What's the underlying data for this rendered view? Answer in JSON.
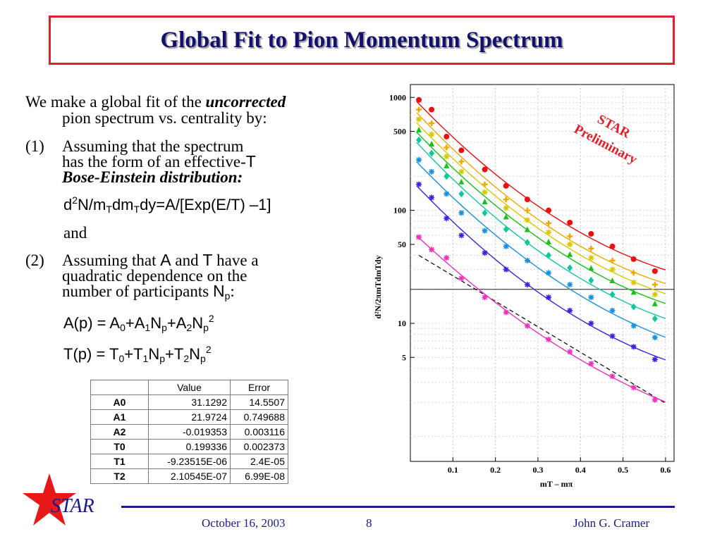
{
  "title": "Global Fit to Pion Momentum Spectrum",
  "text": {
    "intro_a": "We make a global fit of the ",
    "intro_em": "uncorrected",
    "intro_b": "pion spectrum vs. centrality by:",
    "item1_num": "(1)",
    "item1_line1": "Assuming that the spectrum",
    "item1_line2a": "has the form of an effective-",
    "item1_T": "T",
    "item1_line3": "Bose-Einstein distribution:",
    "formula1": "d²N/m_Tdm_Tdy=A/[Exp(E/T) –1]",
    "and": "and",
    "item2_num": "(2)",
    "item2_a": "Assuming that ",
    "item2_A": "A",
    "item2_b": " and ",
    "item2_T": "T",
    "item2_c": " have a",
    "item2_line2": "quadratic dependence on the",
    "item2_line3a": "number of participants ",
    "item2_Np": "N",
    "item2_Np_sub": "p",
    "item2_colon": ":",
    "formula2": "A(p) = A0+A1Np+A2Np2",
    "formula3": "T(p) = T0+T1Np+T2Np2"
  },
  "table": {
    "headers": [
      "",
      "Value",
      "Error"
    ],
    "rows": [
      [
        "A0",
        "31.1292",
        "14.5507"
      ],
      [
        "A1",
        "21.9724",
        "0.749688"
      ],
      [
        "A2",
        "-0.019353",
        "0.003116"
      ],
      [
        "T0",
        "0.199336",
        "0.002373"
      ],
      [
        "T1",
        "-9.23515E-06",
        "2.4E-05"
      ],
      [
        "T2",
        "2.10545E-07",
        "6.99E-08"
      ]
    ]
  },
  "footer": {
    "logo": "STAR",
    "date": "October 16, 2003",
    "page": "8",
    "author": "John G. Cramer"
  },
  "chart_data": {
    "type": "scatter",
    "annotation_line1": "STAR",
    "annotation_line2": "Preliminary",
    "ylabel": "d²N/2πmTdmTdy",
    "xlabel": "mT – mπ",
    "y_scale": "log",
    "xlim": [
      0,
      0.62
    ],
    "ylim": [
      0.6,
      1300
    ],
    "x_ticks": [
      "0.1",
      "0.2",
      "0.3",
      "0.4",
      "0.5",
      "0.6"
    ],
    "y_ticks": [
      "1000",
      "500",
      "100",
      "50",
      "10",
      "5"
    ],
    "grid": true,
    "reference_line_y": 20,
    "dashed_reference": true,
    "series": [
      {
        "color": "#e81010",
        "marker": "circle",
        "x": [
          0.02,
          0.05,
          0.085,
          0.12,
          0.175,
          0.225,
          0.275,
          0.325,
          0.375,
          0.425,
          0.475,
          0.525,
          0.575
        ],
        "y": [
          950,
          780,
          450,
          340,
          230,
          165,
          125,
          100,
          78,
          62,
          48,
          37,
          29
        ]
      },
      {
        "color": "#f0a800",
        "marker": "plus",
        "x": [
          0.02,
          0.05,
          0.085,
          0.12,
          0.175,
          0.225,
          0.275,
          0.325,
          0.375,
          0.425,
          0.475,
          0.525,
          0.575
        ],
        "y": [
          780,
          590,
          360,
          270,
          170,
          125,
          100,
          77,
          59,
          46,
          36,
          28,
          22
        ]
      },
      {
        "color": "#d8c800",
        "marker": "star",
        "x": [
          0.02,
          0.05,
          0.085,
          0.12,
          0.175,
          0.225,
          0.275,
          0.325,
          0.375,
          0.425,
          0.475,
          0.525,
          0.575
        ],
        "y": [
          640,
          470,
          300,
          220,
          145,
          105,
          82,
          64,
          50,
          38,
          30,
          23,
          18
        ]
      },
      {
        "color": "#18c018",
        "marker": "triangle",
        "x": [
          0.02,
          0.05,
          0.085,
          0.12,
          0.175,
          0.225,
          0.275,
          0.325,
          0.375,
          0.425,
          0.475,
          0.525,
          0.575
        ],
        "y": [
          520,
          390,
          250,
          180,
          120,
          88,
          68,
          53,
          41,
          31,
          24,
          19,
          15
        ]
      },
      {
        "color": "#10c8a0",
        "marker": "diamond",
        "x": [
          0.02,
          0.05,
          0.085,
          0.12,
          0.175,
          0.225,
          0.275,
          0.325,
          0.375,
          0.425,
          0.475,
          0.525,
          0.575
        ],
        "y": [
          420,
          320,
          200,
          140,
          95,
          68,
          52,
          40,
          31,
          24,
          18,
          14,
          11
        ]
      },
      {
        "color": "#1890e0",
        "marker": "star",
        "x": [
          0.02,
          0.05,
          0.085,
          0.12,
          0.175,
          0.225,
          0.275,
          0.325,
          0.375,
          0.425,
          0.475,
          0.525,
          0.575
        ],
        "y": [
          280,
          220,
          140,
          95,
          66,
          48,
          36,
          28,
          22,
          17,
          13,
          9.5,
          7.5
        ]
      },
      {
        "color": "#4020e0",
        "marker": "star",
        "x": [
          0.02,
          0.05,
          0.085,
          0.12,
          0.175,
          0.225,
          0.275,
          0.325,
          0.375,
          0.425,
          0.475,
          0.525,
          0.575
        ],
        "y": [
          170,
          130,
          85,
          60,
          42,
          30,
          22,
          17,
          13,
          10,
          7.7,
          6.2,
          4.8
        ]
      },
      {
        "color": "#f030c0",
        "marker": "star",
        "x": [
          0.02,
          0.05,
          0.085,
          0.12,
          0.175,
          0.225,
          0.275,
          0.325,
          0.375,
          0.425,
          0.475,
          0.525,
          0.575
        ],
        "y": [
          58,
          45,
          38,
          25,
          17,
          12.5,
          9.5,
          7.2,
          5.6,
          4.4,
          3.4,
          2.7,
          2.1
        ]
      }
    ]
  }
}
